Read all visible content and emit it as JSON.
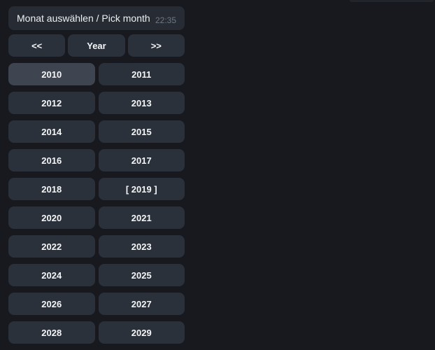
{
  "colors": {
    "background": "#17191f",
    "bubble": "#272c34",
    "button": "#2b313a",
    "button_highlighted": "#3e4450",
    "text": "#edf0f3",
    "button_text": "#f4f6f8",
    "time_text": "#6e7883"
  },
  "message": {
    "text": "Monat auswählen / Pick month",
    "time": "22:35"
  },
  "keyboard": {
    "nav": [
      {
        "label": "<<"
      },
      {
        "label": "Year"
      },
      {
        "label": ">>"
      }
    ],
    "years": [
      {
        "label": "2010",
        "highlighted": true
      },
      {
        "label": "2011"
      },
      {
        "label": "2012"
      },
      {
        "label": "2013"
      },
      {
        "label": "2014"
      },
      {
        "label": "2015"
      },
      {
        "label": "2016"
      },
      {
        "label": "2017"
      },
      {
        "label": "2018"
      },
      {
        "label": "[ 2019 ]",
        "selected": true
      },
      {
        "label": "2020"
      },
      {
        "label": "2021"
      },
      {
        "label": "2022"
      },
      {
        "label": "2023"
      },
      {
        "label": "2024"
      },
      {
        "label": "2025"
      },
      {
        "label": "2026"
      },
      {
        "label": "2027"
      },
      {
        "label": "2028"
      },
      {
        "label": "2029"
      }
    ]
  }
}
